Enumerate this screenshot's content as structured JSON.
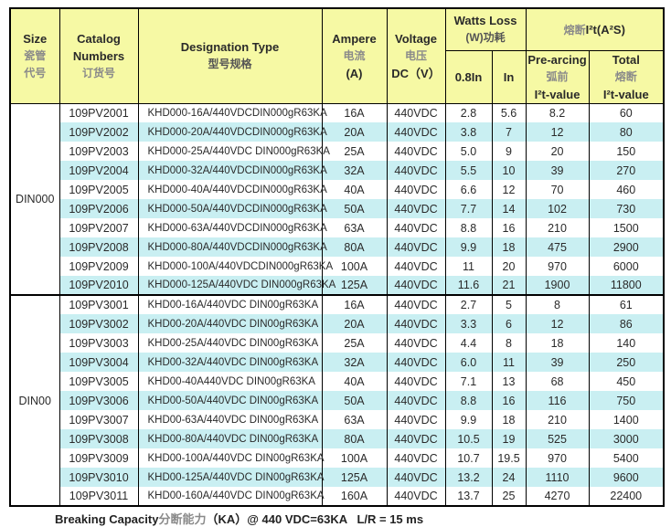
{
  "colors": {
    "header_bg": "#F6F9A4",
    "stripe_cyan": "#C9EFF2",
    "border": "#000000",
    "chinese_text_gray": "#8A8A8A"
  },
  "header": {
    "size": {
      "l1": "Size",
      "l2": "瓷管",
      "l3": "代号"
    },
    "catalog": {
      "l1": "Catalog",
      "l2": "Numbers",
      "l3": "订货号"
    },
    "designation": {
      "l1": "Designation Type",
      "l2": "型号规格"
    },
    "ampere": {
      "l1": "Ampere",
      "l2": "电流",
      "l3": "(A)"
    },
    "voltage": {
      "l1": "Voltage",
      "l2": "电压",
      "l3": "DC（V）"
    },
    "watts_loss": {
      "l1": "Watts Loss",
      "l2": "(W)功耗",
      "col_08in": "0.8In",
      "col_in": "In"
    },
    "i2t": {
      "title_zh": "熔断",
      "title_rest": "I²t(A²S)",
      "pre_arcing": {
        "l1": "Pre-arcing",
        "l2": "弧前",
        "l3": "I²t-value"
      },
      "total": {
        "l1": "Total",
        "l2": "熔断",
        "l3": "I²t-value"
      }
    }
  },
  "groups": [
    {
      "size": "DIN000",
      "rows": [
        [
          "109PV2001",
          "KHD000-16A/440VDCDIN000gR63KA",
          "16A",
          "440VDC",
          "2.8",
          "5.6",
          "8.2",
          "60"
        ],
        [
          "109PV2002",
          "KHD000-20A/440VDCDIN000gR63KA",
          "20A",
          "440VDC",
          "3.8",
          "7",
          "12",
          "80"
        ],
        [
          "109PV2003",
          "KHD000-25A/440VDC DIN000gR63KA",
          "25A",
          "440VDC",
          "5.0",
          "9",
          "20",
          "150"
        ],
        [
          "109PV2004",
          "KHD000-32A/440VDCDIN000gR63KA",
          "32A",
          "440VDC",
          "5.5",
          "10",
          "39",
          "270"
        ],
        [
          "109PV2005",
          "KHD000-40A/440VDCDIN000gR63KA",
          "40A",
          "440VDC",
          "6.6",
          "12",
          "70",
          "460"
        ],
        [
          "109PV2006",
          "KHD000-50A/440VDCDIN000gR63KA",
          "50A",
          "440VDC",
          "7.7",
          "14",
          "102",
          "730"
        ],
        [
          "109PV2007",
          "KHD000-63A/440VDCDIN000gR63KA",
          "63A",
          "440VDC",
          "8.8",
          "16",
          "210",
          "1500"
        ],
        [
          "109PV2008",
          "KHD000-80A/440VDCDIN000gR63KA",
          "80A",
          "440VDC",
          "9.9",
          "18",
          "475",
          "2900"
        ],
        [
          "109PV2009",
          "KHD000-100A/440VDCDIN000gR63KA",
          "100A",
          "440VDC",
          "11",
          "20",
          "970",
          "6000"
        ],
        [
          "109PV2010",
          "KHD000-125A/440VDC DIN000gR63KA",
          "125A",
          "440VDC",
          "11.6",
          "21",
          "1900",
          "11800"
        ]
      ]
    },
    {
      "size": "DIN00",
      "rows": [
        [
          "109PV3001",
          "KHD00-16A/440VDC DIN00gR63KA",
          "16A",
          "440VDC",
          "2.7",
          "5",
          "8",
          "61"
        ],
        [
          "109PV3002",
          "KHD00-20A/440VDC DIN00gR63KA",
          "20A",
          "440VDC",
          "3.3",
          "6",
          "12",
          "86"
        ],
        [
          "109PV3003",
          "KHD00-25A/440VDC DIN00gR63KA",
          "25A",
          "440VDC",
          "4.4",
          "8",
          "18",
          "140"
        ],
        [
          "109PV3004",
          "KHD00-32A/440VDC DIN00gR63KA",
          "32A",
          "440VDC",
          "6.0",
          "11",
          "39",
          "250"
        ],
        [
          "109PV3005",
          "KHD00-40A440VDC DIN00gR63KA",
          "40A",
          "440VDC",
          "7.1",
          "13",
          "68",
          "450"
        ],
        [
          "109PV3006",
          "KHD00-50A/440VDC DIN00gR63KA",
          "50A",
          "440VDC",
          "8.8",
          "16",
          "116",
          "750"
        ],
        [
          "109PV3007",
          "KHD00-63A/440VDC DIN00gR63KA",
          "63A",
          "440VDC",
          "9.9",
          "18",
          "210",
          "1400"
        ],
        [
          "109PV3008",
          "KHD00-80A/440VDC DIN00gR63KA",
          "80A",
          "440VDC",
          "10.5",
          "19",
          "525",
          "3000"
        ],
        [
          "109PV3009",
          "KHD00-100A/440VDC DIN00gR63KA",
          "100A",
          "440VDC",
          "10.7",
          "19.5",
          "970",
          "5400"
        ],
        [
          "109PV3010",
          "KHD00-125A/440VDC DIN00gR63KA",
          "125A",
          "440VDC",
          "13.2",
          "24",
          "1110",
          "9600"
        ],
        [
          "109PV3011",
          "KHD00-160A/440VDC DIN00gR63KA",
          "160A",
          "440VDC",
          "13.7",
          "25",
          "4270",
          "22400"
        ]
      ]
    }
  ],
  "footer": {
    "en": "Breaking Capacity",
    "zh": "分断能力",
    "rest": "（KA）@ 440 VDC=63KA   L/R = 15 ms"
  }
}
